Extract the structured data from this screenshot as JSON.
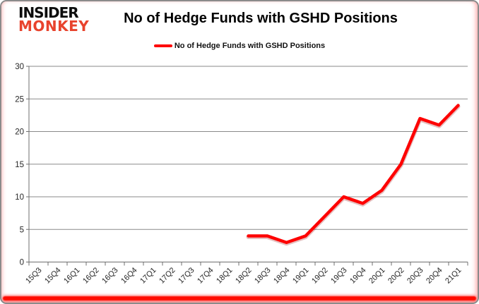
{
  "logo": {
    "line1": "INSIDER",
    "line2": "MONKEY"
  },
  "header": {
    "title": "No of Hedge Funds with GSHD Positions"
  },
  "legend": {
    "label": "No of Hedge Funds with GSHD Positions"
  },
  "colors": {
    "line_red": "#fe0000",
    "logo_red": "#e8432d",
    "gridline": "#8a8a8a",
    "axis": "#6f6f6f",
    "tick_text": "#262626",
    "frame_border": "#8b8b8b",
    "bottom_glow": "#ff0c00"
  },
  "chart_data": {
    "type": "line",
    "title": "No of Hedge Funds with GSHD Positions",
    "categories": [
      "15Q3",
      "15Q4",
      "16Q1",
      "16Q2",
      "16Q3",
      "16Q4",
      "17Q1",
      "17Q2",
      "17Q3",
      "17Q4",
      "18Q1",
      "18Q2",
      "18Q3",
      "18Q4",
      "19Q1",
      "19Q2",
      "19Q3",
      "19Q4",
      "20Q1",
      "20Q2",
      "20Q3",
      "20Q4",
      "21Q1"
    ],
    "series": [
      {
        "name": "No of Hedge Funds with GSHD Positions",
        "color": "#fe0000",
        "values": [
          null,
          null,
          null,
          null,
          null,
          null,
          null,
          null,
          null,
          null,
          null,
          4,
          4,
          3,
          4,
          7,
          10,
          9,
          11,
          15,
          22,
          21,
          24
        ]
      }
    ],
    "xlabel": "",
    "ylabel": "",
    "ylim": [
      0,
      30
    ],
    "yticks": [
      0,
      5,
      10,
      15,
      20,
      25,
      30
    ],
    "grid": true,
    "legend_position": "top"
  }
}
